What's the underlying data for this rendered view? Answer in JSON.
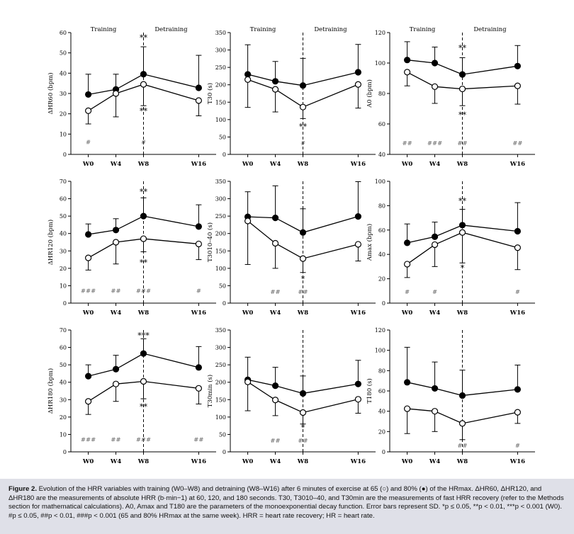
{
  "figure": {
    "caption_label": "Figure 2.",
    "caption_text": "Evolution of the HRR variables with training (W0–W8) and detraining (W8–W16) after 6 minutes of exercise at 65 (○) and 80% (●) of the HRmax. ΔHR60, ΔHR120, and ΔHR180 are the measurements of absolute HRR (b·min−1) at 60, 120, and 180 seconds. T30, T3010–40, and T30min are the measurements of fast HRR recovery (refer to the Methods section for mathematical calculations). A0, Amax and T180 are the parameters of the monoexponential decay function. Error bars represent SD. *p ≤ 0.05, **p < 0.01, ***p < 0.001 (W0). #p ≤ 0.05, ##p < 0.01, ###p < 0.001 (65 and 80% HRmax at the same week). HRR = heart rate recovery; HR = heart rate."
  },
  "chart_data": [
    {
      "type": "line",
      "title": "",
      "ylabel": "ΔHR60 (bpm)",
      "x": [
        "W0",
        "W4",
        "W8",
        "W16"
      ],
      "xpos": [
        0,
        4,
        8,
        16
      ],
      "ylim": [
        0,
        60
      ],
      "yticks": [
        0,
        10,
        20,
        30,
        40,
        50,
        60
      ],
      "phase_labels": [
        "Training",
        "Detraining"
      ],
      "divider": true,
      "series": [
        {
          "name": "80% HRmax",
          "marker": "filled",
          "values": [
            29.5,
            32,
            39.5,
            32.8
          ],
          "error": [
            10,
            7.5,
            13.5,
            16
          ],
          "error_dir": "up"
        },
        {
          "name": "65% HRmax",
          "marker": "open",
          "values": [
            21.5,
            30,
            34.5,
            26.5
          ],
          "error": [
            6.5,
            11.5,
            10.5,
            7.5
          ],
          "error_dir": "down"
        }
      ],
      "annotations": [
        {
          "text": "**",
          "x": 8,
          "y": 57.5
        },
        {
          "text": "**",
          "x": 8,
          "y": 21.5
        },
        {
          "text": "#",
          "x": 0,
          "y": 6.5
        },
        {
          "text": "#",
          "x": 8,
          "y": 6.5
        }
      ]
    },
    {
      "type": "line",
      "title": "",
      "ylabel": "T30 (s)",
      "x": [
        "W0",
        "W4",
        "W8",
        "W16"
      ],
      "xpos": [
        0,
        4,
        8,
        16
      ],
      "ylim": [
        0,
        350
      ],
      "yticks": [
        0,
        50,
        100,
        150,
        200,
        250,
        300,
        350
      ],
      "phase_labels": [
        "Training",
        "Detraining"
      ],
      "divider": true,
      "series": [
        {
          "name": "80% HRmax",
          "marker": "filled",
          "values": [
            230,
            210,
            198,
            236
          ],
          "error": [
            85,
            57,
            78,
            80
          ],
          "error_dir": "up"
        },
        {
          "name": "65% HRmax",
          "marker": "open",
          "values": [
            215,
            187,
            136,
            201
          ],
          "error": [
            80,
            65,
            33,
            68
          ],
          "error_dir": "down"
        }
      ],
      "annotations": [
        {
          "text": "**",
          "x": 8,
          "y": 80
        },
        {
          "text": "#",
          "x": 8,
          "y": 35
        }
      ]
    },
    {
      "type": "line",
      "title": "",
      "ylabel": "A0 (bpm)",
      "x": [
        "W0",
        "W4",
        "W8",
        "W16"
      ],
      "xpos": [
        0,
        4,
        8,
        16
      ],
      "ylim": [
        40,
        120
      ],
      "yticks": [
        40,
        60,
        80,
        100,
        120
      ],
      "phase_labels": [
        "Training",
        "Detraining"
      ],
      "divider": true,
      "series": [
        {
          "name": "80% HRmax",
          "marker": "filled",
          "values": [
            102,
            100,
            92.5,
            98
          ],
          "error": [
            12,
            10.5,
            11,
            13.5
          ],
          "error_dir": "up"
        },
        {
          "name": "65% HRmax",
          "marker": "open",
          "values": [
            94,
            84.5,
            83,
            85
          ],
          "error": [
            9,
            11,
            11,
            12
          ],
          "error_dir": "down"
        }
      ],
      "annotations": [
        {
          "text": "**",
          "x": 8,
          "y": 110
        },
        {
          "text": "**",
          "x": 8,
          "y": 66
        },
        {
          "text": "##",
          "x": 0,
          "y": 48
        },
        {
          "text": "###",
          "x": 4,
          "y": 48
        },
        {
          "text": "##",
          "x": 8,
          "y": 48
        },
        {
          "text": "##",
          "x": 16,
          "y": 48
        }
      ]
    },
    {
      "type": "line",
      "title": "",
      "ylabel": "ΔHR120 (bpm)",
      "x": [
        "W0",
        "W4",
        "W8",
        "W16"
      ],
      "xpos": [
        0,
        4,
        8,
        16
      ],
      "ylim": [
        0,
        70
      ],
      "yticks": [
        0,
        10,
        20,
        30,
        40,
        50,
        60,
        70
      ],
      "phase_labels": [],
      "divider": true,
      "series": [
        {
          "name": "80% HRmax",
          "marker": "filled",
          "values": [
            39.5,
            42,
            50,
            44
          ],
          "error": [
            6,
            6.5,
            10.5,
            12.5
          ],
          "error_dir": "up"
        },
        {
          "name": "65% HRmax",
          "marker": "open",
          "values": [
            26,
            35,
            37,
            34
          ],
          "error": [
            7,
            12.5,
            7.5,
            9
          ],
          "error_dir": "down"
        }
      ],
      "annotations": [
        {
          "text": "**",
          "x": 8,
          "y": 64
        },
        {
          "text": "**",
          "x": 8,
          "y": 23.5
        },
        {
          "text": "###",
          "x": 0,
          "y": 7.5
        },
        {
          "text": "##",
          "x": 4,
          "y": 7.5
        },
        {
          "text": "###",
          "x": 8,
          "y": 7.5
        },
        {
          "text": "#",
          "x": 16,
          "y": 7.5
        }
      ]
    },
    {
      "type": "line",
      "title": "",
      "ylabel": "T3010–40 (s)",
      "x": [
        "W0",
        "W4",
        "W8",
        "W16"
      ],
      "xpos": [
        0,
        4,
        8,
        16
      ],
      "ylim": [
        0,
        350
      ],
      "yticks": [
        0,
        50,
        100,
        150,
        200,
        250,
        300,
        350
      ],
      "phase_labels": [],
      "divider": true,
      "series": [
        {
          "name": "80% HRmax",
          "marker": "filled",
          "values": [
            248,
            245,
            203,
            249
          ],
          "error": [
            72,
            92,
            68,
            100
          ],
          "error_dir": "up"
        },
        {
          "name": "65% HRmax",
          "marker": "open",
          "values": [
            236,
            172,
            128,
            169
          ],
          "error": [
            125,
            72,
            40,
            48
          ],
          "error_dir": "down"
        }
      ],
      "annotations": [
        {
          "text": "*",
          "x": 8,
          "y": 70
        },
        {
          "text": "##",
          "x": 4,
          "y": 35
        },
        {
          "text": "##",
          "x": 8,
          "y": 35
        }
      ]
    },
    {
      "type": "line",
      "title": "",
      "ylabel": "Amax (bpm)",
      "x": [
        "W0",
        "W4",
        "W8",
        "W16"
      ],
      "xpos": [
        0,
        4,
        8,
        16
      ],
      "ylim": [
        0,
        100
      ],
      "yticks": [
        0,
        20,
        40,
        60,
        80,
        100
      ],
      "phase_labels": [],
      "divider": true,
      "series": [
        {
          "name": "80% HRmax",
          "marker": "filled",
          "values": [
            49.5,
            54.5,
            64,
            59
          ],
          "error": [
            15.5,
            12,
            13,
            23.5
          ],
          "error_dir": "up"
        },
        {
          "name": "65% HRmax",
          "marker": "open",
          "values": [
            32,
            48,
            58,
            45.5
          ],
          "error": [
            11,
            18,
            25,
            18
          ],
          "error_dir": "down"
        }
      ],
      "annotations": [
        {
          "text": "**",
          "x": 8,
          "y": 84
        },
        {
          "text": "*",
          "x": 8,
          "y": 29
        },
        {
          "text": "#",
          "x": 0,
          "y": 10
        },
        {
          "text": "#",
          "x": 4,
          "y": 10
        },
        {
          "text": "#",
          "x": 16,
          "y": 10
        }
      ]
    },
    {
      "type": "line",
      "title": "",
      "ylabel": "ΔHR180 (bpm)",
      "x": [
        "W0",
        "W4",
        "W8",
        "W16"
      ],
      "xpos": [
        0,
        4,
        8,
        16
      ],
      "ylim": [
        0,
        70
      ],
      "yticks": [
        0,
        10,
        20,
        30,
        40,
        50,
        60,
        70
      ],
      "phase_labels": [],
      "divider": true,
      "series": [
        {
          "name": "80% HRmax",
          "marker": "filled",
          "values": [
            43.5,
            47.5,
            56.5,
            48.5
          ],
          "error": [
            6.5,
            8,
            8.5,
            12
          ],
          "error_dir": "up"
        },
        {
          "name": "65% HRmax",
          "marker": "open",
          "values": [
            29,
            39,
            40.5,
            36.5
          ],
          "error": [
            7.5,
            10,
            10,
            9
          ],
          "error_dir": "down"
        }
      ],
      "annotations": [
        {
          "text": "***",
          "x": 8,
          "y": 67
        },
        {
          "text": "**",
          "x": 8,
          "y": 26
        },
        {
          "text": "###",
          "x": 0,
          "y": 7.5
        },
        {
          "text": "##",
          "x": 4,
          "y": 7.5
        },
        {
          "text": "###",
          "x": 8,
          "y": 7.5
        },
        {
          "text": "##",
          "x": 16,
          "y": 7.5
        }
      ]
    },
    {
      "type": "line",
      "title": "",
      "ylabel": "T30min (s)",
      "x": [
        "W0",
        "W4",
        "W8",
        "W16"
      ],
      "xpos": [
        0,
        4,
        8,
        16
      ],
      "ylim": [
        0,
        350
      ],
      "yticks": [
        0,
        50,
        100,
        150,
        200,
        250,
        300,
        350
      ],
      "phase_labels": [],
      "divider": true,
      "series": [
        {
          "name": "80% HRmax",
          "marker": "filled",
          "values": [
            207,
            190,
            168,
            195
          ],
          "error": [
            65,
            53,
            50,
            68
          ],
          "error_dir": "up"
        },
        {
          "name": "65% HRmax",
          "marker": "open",
          "values": [
            201,
            149,
            113,
            151
          ],
          "error": [
            83,
            45,
            33,
            40
          ],
          "error_dir": "down"
        }
      ],
      "annotations": [
        {
          "text": "*",
          "x": 8,
          "y": 70
        },
        {
          "text": "##",
          "x": 4,
          "y": 35
        },
        {
          "text": "##",
          "x": 8,
          "y": 35
        }
      ]
    },
    {
      "type": "line",
      "title": "",
      "ylabel": "T180 (s)",
      "x": [
        "W0",
        "W4",
        "W8",
        "W16"
      ],
      "xpos": [
        0,
        4,
        8,
        16
      ],
      "ylim": [
        0,
        120
      ],
      "yticks": [
        0,
        20,
        40,
        60,
        80,
        100,
        120
      ],
      "phase_labels": [],
      "divider": true,
      "series": [
        {
          "name": "80% HRmax",
          "marker": "filled",
          "values": [
            68.5,
            62.5,
            55.5,
            61.5
          ],
          "error": [
            34.5,
            26,
            25,
            24
          ],
          "error_dir": "up"
        },
        {
          "name": "65% HRmax",
          "marker": "open",
          "values": [
            42.5,
            40,
            28,
            39
          ],
          "error": [
            24.5,
            20,
            16,
            11
          ],
          "error_dir": "down"
        }
      ],
      "annotations": [
        {
          "text": "##",
          "x": 8,
          "y": 7
        },
        {
          "text": "#",
          "x": 16,
          "y": 7
        }
      ]
    }
  ]
}
